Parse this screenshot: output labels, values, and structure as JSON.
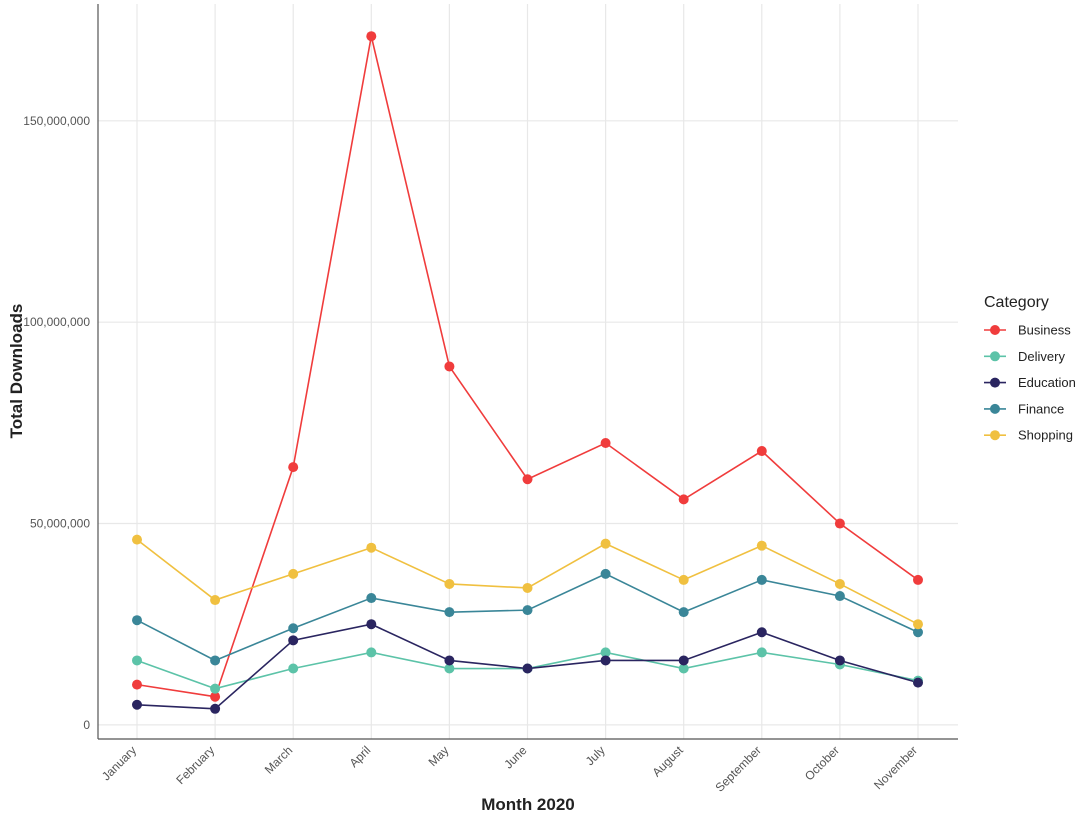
{
  "chart_data": {
    "type": "line",
    "title": "",
    "xlabel": "Month 2020",
    "ylabel": "Total Downloads",
    "categories": [
      "January",
      "February",
      "March",
      "April",
      "May",
      "June",
      "July",
      "August",
      "September",
      "October",
      "November"
    ],
    "ylim": [
      -3500000,
      179000000
    ],
    "yticks": [
      0,
      50000000,
      100000000,
      150000000
    ],
    "ytick_labels": [
      "0",
      "50,000,000",
      "100,000,000",
      "150,000,000"
    ],
    "grid": true,
    "legend": {
      "title": "Category",
      "position": "right"
    },
    "series": [
      {
        "name": "Business",
        "color": "#f03c3c",
        "values": [
          10000000,
          7000000,
          64000000,
          171000000,
          89000000,
          61000000,
          70000000,
          56000000,
          68000000,
          50000000,
          36000000
        ]
      },
      {
        "name": "Delivery",
        "color": "#5cc3a8",
        "values": [
          16000000,
          9000000,
          14000000,
          18000000,
          14000000,
          14000000,
          18000000,
          14000000,
          18000000,
          15000000,
          11000000
        ]
      },
      {
        "name": "Education",
        "color": "#2a2560",
        "values": [
          5000000,
          4000000,
          21000000,
          25000000,
          16000000,
          14000000,
          16000000,
          16000000,
          23000000,
          16000000,
          10500000
        ]
      },
      {
        "name": "Finance",
        "color": "#3a8698",
        "values": [
          26000000,
          16000000,
          24000000,
          31500000,
          28000000,
          28500000,
          37500000,
          28000000,
          36000000,
          32000000,
          23000000
        ]
      },
      {
        "name": "Shopping",
        "color": "#f0c040",
        "values": [
          46000000,
          31000000,
          37500000,
          44000000,
          35000000,
          34000000,
          45000000,
          36000000,
          44500000,
          35000000,
          25000000
        ]
      }
    ]
  }
}
